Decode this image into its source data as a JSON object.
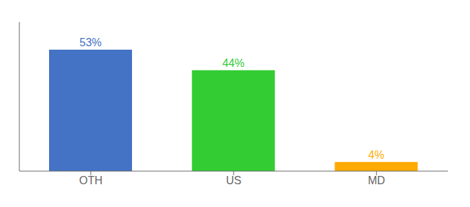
{
  "chart_data": {
    "type": "bar",
    "categories": [
      "OTH",
      "US",
      "MD"
    ],
    "values": [
      53,
      44,
      4
    ],
    "value_labels": [
      "53%",
      "44%",
      "4%"
    ],
    "colors": [
      "#4472c4",
      "#33cc33",
      "#ffaa00"
    ],
    "ylim": [
      0,
      65
    ],
    "data_labels": true,
    "tick_labels": "x",
    "grid": false
  }
}
